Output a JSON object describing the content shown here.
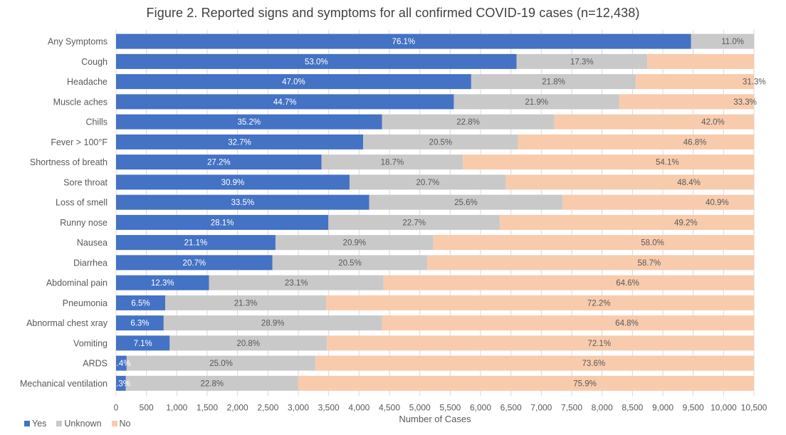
{
  "chart_data": {
    "type": "bar",
    "orientation": "horizontal",
    "stacked": true,
    "title": "Figure 2. Reported signs and symptoms for all confirmed COVID-19 cases (n=12,438)",
    "total_n": 12438,
    "xlabel": "Number of Cases",
    "ylabel": "",
    "xlim": [
      0,
      10500
    ],
    "x_ticks": [
      0,
      500,
      1000,
      1500,
      2000,
      2500,
      3000,
      3500,
      4000,
      4500,
      5000,
      5500,
      6000,
      6500,
      7000,
      7500,
      8000,
      8500,
      9000,
      9500,
      10000,
      10500
    ],
    "x_tick_labels": [
      "0",
      "500",
      "1,000",
      "1,500",
      "2,000",
      "2,500",
      "3,000",
      "3,500",
      "4,000",
      "4,500",
      "5,000",
      "5,500",
      "6,000",
      "6,500",
      "7,000",
      "7,500",
      "8,000",
      "8,500",
      "9,000",
      "9,500",
      "10,000",
      "10,500"
    ],
    "grid": "vertical",
    "legend_position": "bottom-left",
    "categories": [
      "Any Symptoms",
      "Cough",
      "Headache",
      "Muscle aches",
      "Chills",
      "Fever > 100°F",
      "Shortness of breath",
      "Sore throat",
      "Loss of smell",
      "Runny nose",
      "Nausea",
      "Diarrhea",
      "Abdominal pain",
      "Pneumonia",
      "Abnormal chest xray",
      "Vomiting",
      "ARDS",
      "Mechanical ventilation"
    ],
    "series": [
      {
        "name": "Yes",
        "color": "#4472c4",
        "label_color": "#ffffff",
        "percent": [
          76.1,
          53.0,
          47.0,
          44.7,
          35.2,
          32.7,
          27.2,
          30.9,
          33.5,
          28.1,
          21.1,
          20.7,
          12.3,
          6.5,
          6.3,
          7.1,
          1.4,
          1.3
        ],
        "labels": [
          "76.1%",
          "53.0%",
          "47.0%",
          "44.7%",
          "35.2%",
          "32.7%",
          "27.2%",
          "30.9%",
          "33.5%",
          "28.1%",
          "21.1%",
          "20.7%",
          "12.3%",
          "6.5%",
          "6.3%",
          "7.1%",
          "1.4%",
          "1.3%"
        ]
      },
      {
        "name": "Unknown",
        "color": "#c9c9c9",
        "label_color": "#595959",
        "percent": [
          11.0,
          17.3,
          21.8,
          21.9,
          22.8,
          20.5,
          18.7,
          20.7,
          25.6,
          22.7,
          20.9,
          20.5,
          23.1,
          21.3,
          28.9,
          20.8,
          25.0,
          22.8
        ],
        "labels": [
          "11.0%",
          "17.3%",
          "21.8%",
          "21.9%",
          "22.8%",
          "20.5%",
          "18.7%",
          "20.7%",
          "25.6%",
          "22.7%",
          "20.9%",
          "20.5%",
          "23.1%",
          "21.3%",
          "28.9%",
          "20.8%",
          "25.0%",
          "22.8%"
        ]
      },
      {
        "name": "No",
        "color": "#f8cbad",
        "label_color": "#595959",
        "percent": [
          null,
          29.7,
          31.3,
          33.3,
          42.0,
          46.8,
          54.1,
          48.4,
          40.9,
          49.2,
          58.0,
          58.7,
          64.6,
          72.2,
          64.8,
          72.1,
          73.6,
          75.9
        ],
        "labels": [
          "",
          "",
          "31.3%",
          "33.3%",
          "42.0%",
          "46.8%",
          "54.1%",
          "48.4%",
          "40.9%",
          "49.2%",
          "58.0%",
          "58.7%",
          "64.6%",
          "72.2%",
          "64.8%",
          "72.1%",
          "73.6%",
          "75.9%"
        ]
      }
    ],
    "note": "Bar lengths are case counts (percent × n), clipped at the axis maximum 10,500"
  },
  "legend": {
    "items": [
      {
        "label": "Yes",
        "color": "#4472c4"
      },
      {
        "label": "Unknown",
        "color": "#c9c9c9"
      },
      {
        "label": "No",
        "color": "#f8cbad"
      }
    ]
  },
  "colors": {
    "gridline": "#d9d9d9",
    "text": "#595959",
    "title": "#404040"
  }
}
